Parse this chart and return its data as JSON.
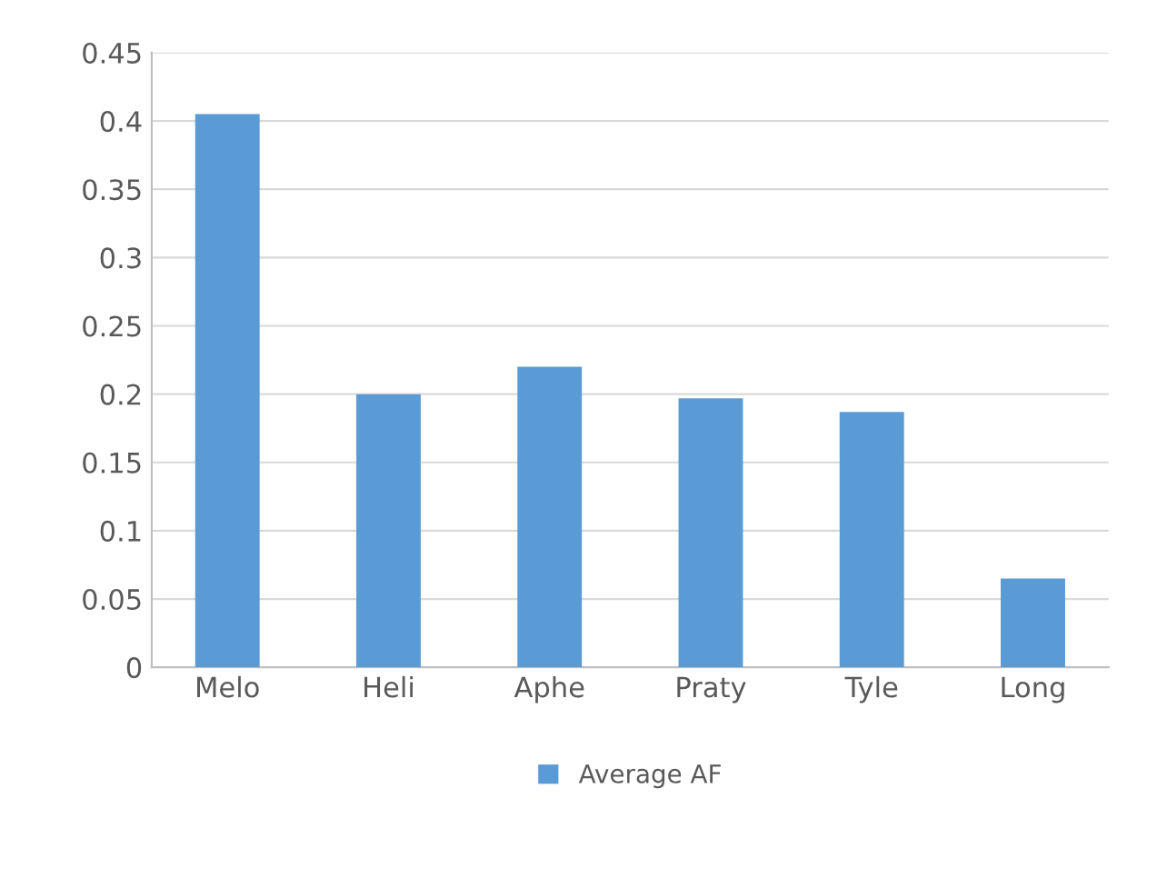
{
  "chart_data": {
    "type": "bar",
    "categories": [
      "Melo",
      "Heli",
      "Aphe",
      "Praty",
      "Tyle",
      "Long"
    ],
    "series": [
      {
        "name": "Average AF",
        "color": "#5b9bd5",
        "values": [
          0.405,
          0.2,
          0.22,
          0.197,
          0.187,
          0.065
        ]
      }
    ],
    "ylim": [
      0,
      0.45
    ],
    "yticks": [
      0,
      0.05,
      0.1,
      0.15,
      0.2,
      0.25,
      0.3,
      0.35,
      0.4,
      0.45
    ],
    "grid": "y",
    "legend": "bottom"
  }
}
